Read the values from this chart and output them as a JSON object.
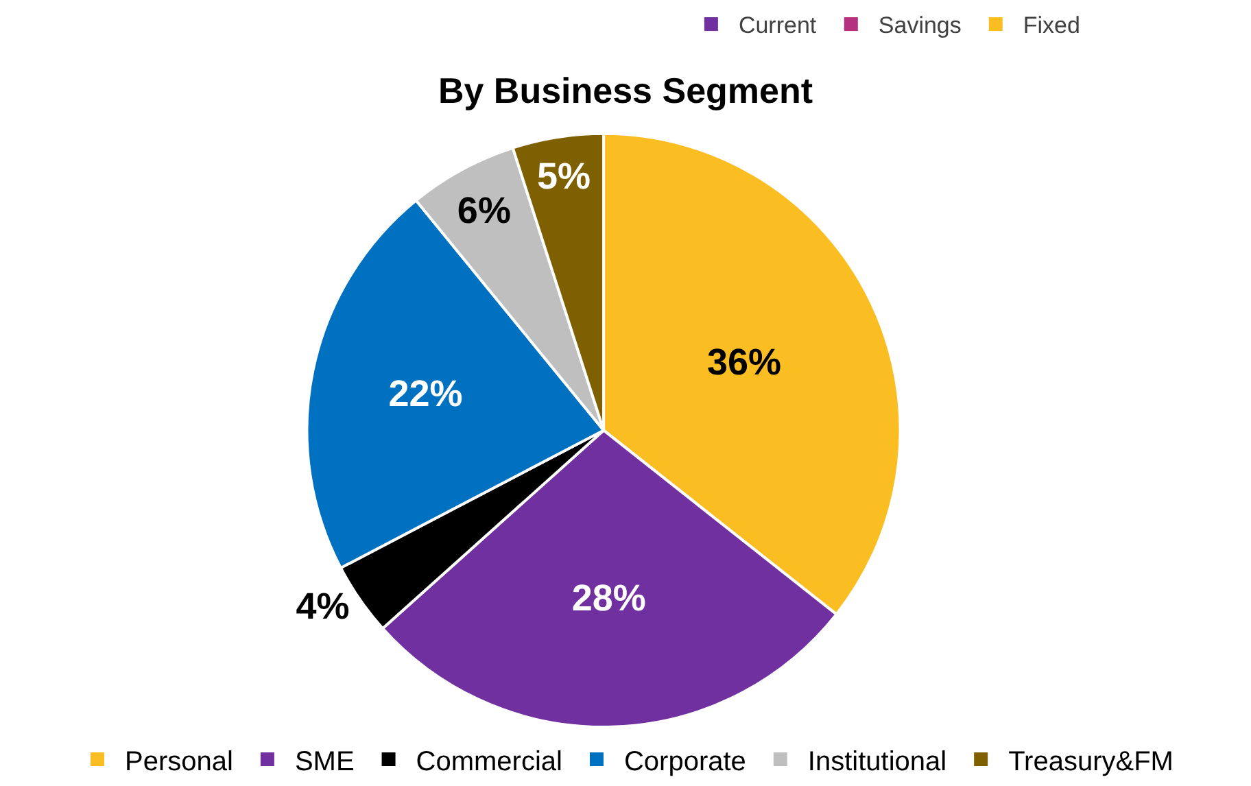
{
  "chart_data": [
    {
      "type": "other",
      "legend": "top right",
      "series": [
        {
          "name": "Current",
          "color": "#7030a0"
        },
        {
          "name": "Savings",
          "color": "#b5307f"
        },
        {
          "name": "Fixed",
          "color": "#fbbe22"
        }
      ]
    },
    {
      "type": "pie",
      "title": "By Business Segment",
      "legend": "bottom",
      "data_labels": true,
      "categories": [
        "Personal",
        "SME",
        "Commercial",
        "Corporate",
        "Institutional",
        "Treasury&FM"
      ],
      "values": [
        36,
        28,
        4,
        22,
        6,
        5
      ],
      "value_labels": [
        "36%",
        "28%",
        "4%",
        "22%",
        "6%",
        "5%"
      ],
      "colors": [
        "#fbbe22",
        "#7030a0",
        "#000000",
        "#0070c0",
        "#bfbfbf",
        "#7f6000"
      ]
    }
  ]
}
